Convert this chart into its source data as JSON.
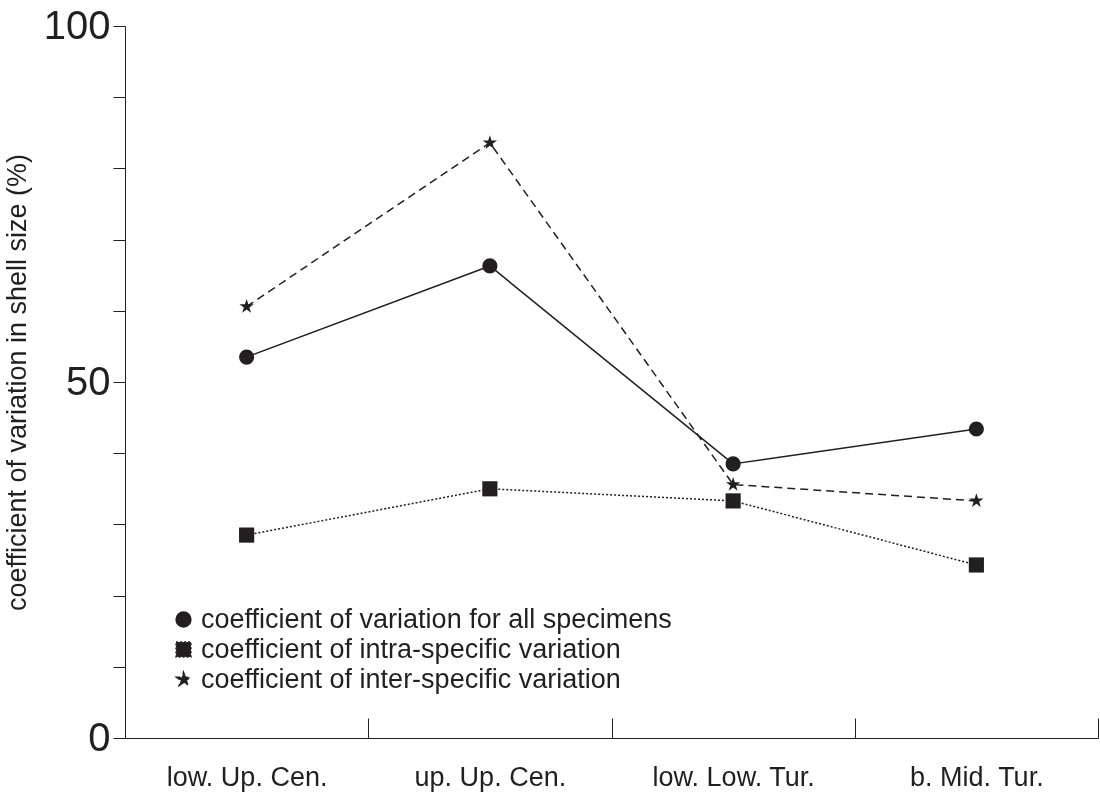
{
  "chart_data": {
    "type": "line",
    "ylabel": "coefficient of variation in shell size (%)",
    "categories": [
      "low. Up. Cen.",
      "up. Up. Cen.",
      "low. Low. Tur.",
      "b. Mid. Tur."
    ],
    "series": [
      {
        "name": "coefficient of variation for all specimens",
        "color": "#231f20",
        "marker": "circle",
        "line_style": "solid",
        "values": [
          53.5,
          66.3,
          38.5,
          43.4
        ]
      },
      {
        "name": "coefficient of intra-specific variation",
        "color": "#231f20",
        "marker": "square",
        "line_style": "dotted",
        "values": [
          28.5,
          35.0,
          33.3,
          24.3
        ]
      },
      {
        "name": "coefficient of inter-specific variation",
        "color": "#231f20",
        "marker": "star",
        "line_style": "dashed",
        "values": [
          60.6,
          83.6,
          35.6,
          33.3
        ]
      }
    ],
    "ylim": [
      0,
      100
    ],
    "yticks": [
      0,
      {
        "value": 10,
        "label": null
      },
      {
        "value": 20,
        "label": null
      },
      {
        "value": 30,
        "label": null
      },
      {
        "value": 40,
        "label": null
      },
      50,
      {
        "value": 60,
        "label": null
      },
      {
        "value": 70,
        "label": null
      },
      {
        "value": 80,
        "label": null
      },
      {
        "value": 90,
        "label": null
      },
      100
    ],
    "grid": false,
    "legend": "bottom left"
  }
}
